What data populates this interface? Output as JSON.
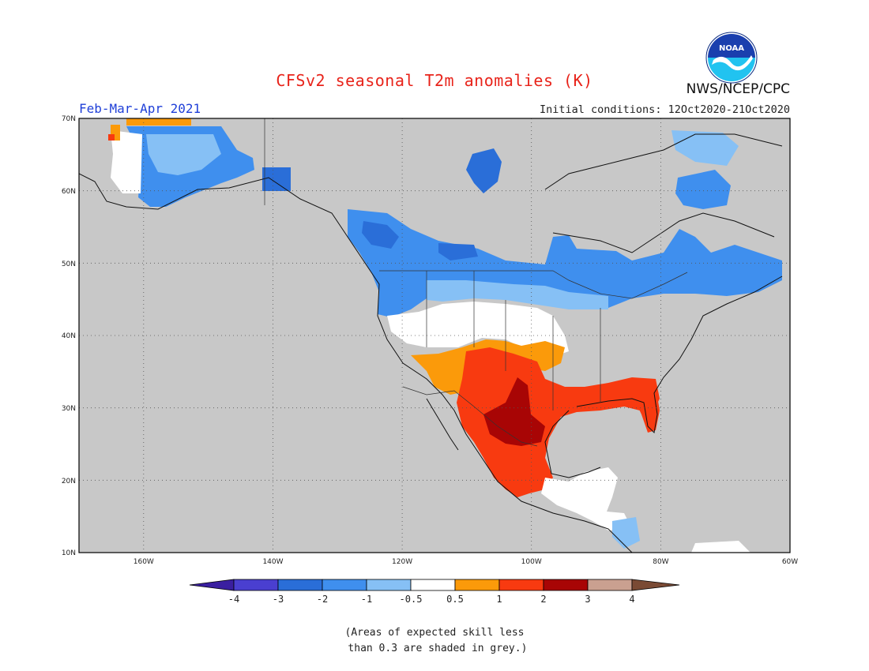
{
  "header": {
    "title": "CFSv2 seasonal T2m anomalies (K)",
    "period": "Feb-Mar-Apr 2021",
    "initial_conditions": "Initial conditions: 12Oct2020-21Oct2020",
    "agency": "NWS/NCEP/CPC",
    "logo_text": "NOAA"
  },
  "map": {
    "lat_labels": [
      "70N",
      "60N",
      "50N",
      "40N",
      "30N",
      "20N",
      "10N"
    ],
    "lon_labels": [
      "160W",
      "140W",
      "120W",
      "100W",
      "80W",
      "60W"
    ],
    "extent": {
      "lon_min": -170,
      "lon_max": -60,
      "lat_min": 10,
      "lat_max": 70
    },
    "colors": {
      "no_skill": "#c8c8c8",
      "background": "#ffffff",
      "coast": "#111111",
      "border": "#333333"
    },
    "regions": [
      {
        "name": "alaska-negative-anomaly",
        "level": "-1 to -3"
      },
      {
        "name": "canada-negative-anomaly",
        "level": "-1 to -3"
      },
      {
        "name": "northern-us-negative-anomaly",
        "level": "-0.5 to -2"
      },
      {
        "name": "southwest-positive-anomaly",
        "level": "0.5 to 1"
      },
      {
        "name": "texas-mexico-positive-anomaly",
        "level": "1 to 3"
      },
      {
        "name": "gulf-coast-positive-anomaly",
        "level": "1 to 2"
      },
      {
        "name": "central-america-near-normal",
        "level": "-0.5 to 0.5"
      }
    ]
  },
  "colorbar": {
    "labels": [
      "-4",
      "-3",
      "-2",
      "-1",
      "-0.5",
      "0.5",
      "1",
      "2",
      "3",
      "4"
    ],
    "colors": [
      "#3a1fa0",
      "#4a3fd0",
      "#2a6ed8",
      "#3f8fee",
      "#86c0f5",
      "#ffffff",
      "#fb9a0a",
      "#f83a10",
      "#a80505",
      "#caa090",
      "#7a4a34"
    ]
  },
  "footnote": "(Areas of expected skill less\n than 0.3 are shaded in grey.)"
}
